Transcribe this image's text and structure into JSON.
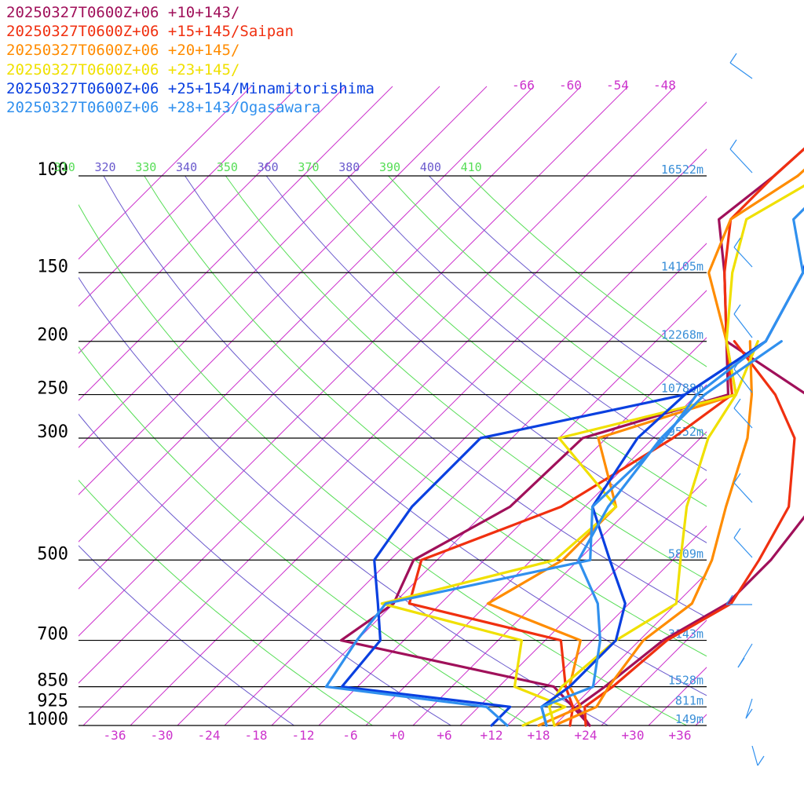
{
  "chart_data": {
    "type": "line",
    "legend_position": "top-left",
    "grid": true,
    "x_axis": {
      "unit": "°C (skewed)",
      "range": [
        -39,
        40
      ],
      "tick_labels": [
        "-36",
        "-30",
        "-24",
        "-18",
        "-12",
        "-6",
        "+0",
        "+6",
        "+12",
        "+18",
        "+24",
        "+30",
        "+36"
      ],
      "tick_values": [
        -36,
        -30,
        -24,
        -18,
        -12,
        -6,
        0,
        6,
        12,
        18,
        24,
        30,
        36
      ]
    },
    "y_axis": {
      "unit": "hPa",
      "scale": "log",
      "range": [
        1000,
        100
      ],
      "levels": [
        {
          "p": 100,
          "label": "100",
          "height": "16522m"
        },
        {
          "p": 150,
          "label": "150",
          "height": "14105m"
        },
        {
          "p": 200,
          "label": "200",
          "height": "12268m"
        },
        {
          "p": 250,
          "label": "250",
          "height": "10788m"
        },
        {
          "p": 300,
          "label": "300",
          "height": "9552m"
        },
        {
          "p": 500,
          "label": "500",
          "height": "5809m"
        },
        {
          "p": 700,
          "label": "700",
          "height": "3143m"
        },
        {
          "p": 850,
          "label": "850",
          "height": "1528m"
        },
        {
          "p": 925,
          "label": "925",
          "height": "811m"
        },
        {
          "p": 1000,
          "label": "1000",
          "height": "149m"
        }
      ]
    },
    "top_isotherm_labels": [
      "-66",
      "-60",
      "-54",
      "-48"
    ],
    "theta_labels": [
      {
        "text": "310",
        "color": "#55dd55"
      },
      {
        "text": "320",
        "color": "#6a5acd"
      },
      {
        "text": "330",
        "color": "#55dd55"
      },
      {
        "text": "340",
        "color": "#6a5acd"
      },
      {
        "text": "350",
        "color": "#55dd55"
      },
      {
        "text": "360",
        "color": "#6a5acd"
      },
      {
        "text": "370",
        "color": "#55dd55"
      },
      {
        "text": "380",
        "color": "#6a5acd"
      },
      {
        "text": "390",
        "color": "#55dd55"
      },
      {
        "text": "400",
        "color": "#6a5acd"
      },
      {
        "text": "410",
        "color": "#55dd55"
      }
    ],
    "series": [
      {
        "name": "20250327T0600Z+06 +10+143/",
        "color": "#a0105a",
        "temperature": [
          [
            1000,
            24.5
          ],
          [
            925,
            20
          ],
          [
            850,
            15
          ],
          [
            700,
            -18
          ],
          [
            600,
            -16
          ],
          [
            500,
            -19
          ],
          [
            400,
            -13.5
          ],
          [
            300,
            -13
          ],
          [
            250,
            0
          ],
          [
            200,
            -7
          ],
          [
            150,
            -16
          ],
          [
            120,
            -23.5
          ],
          [
            100,
            -22
          ]
        ],
        "dewpoint": [
          [
            1000,
            24.5
          ],
          [
            925,
            20.5
          ],
          [
            850,
            21.5
          ],
          [
            700,
            23
          ],
          [
            600,
            26.5
          ],
          [
            500,
            26.5
          ],
          [
            400,
            25
          ],
          [
            300,
            18
          ],
          [
            250,
            10
          ],
          [
            200,
            -7
          ]
        ]
      },
      {
        "name": "20250327T0600Z+06 +15+145/Saipan",
        "color": "#f03010",
        "temperature": [
          [
            1000,
            22
          ],
          [
            925,
            20
          ],
          [
            850,
            16.5
          ],
          [
            700,
            10
          ],
          [
            600,
            -14
          ],
          [
            500,
            -18
          ],
          [
            400,
            -7
          ],
          [
            300,
            -1.5
          ],
          [
            250,
            0.5
          ],
          [
            200,
            -7
          ],
          [
            150,
            -16
          ],
          [
            120,
            -22
          ],
          [
            100,
            -22
          ]
        ],
        "dewpoint": [
          [
            1000,
            24
          ],
          [
            925,
            21.5
          ],
          [
            850,
            22.5
          ],
          [
            700,
            23.5
          ],
          [
            600,
            27
          ],
          [
            500,
            25
          ],
          [
            400,
            22
          ],
          [
            300,
            14
          ],
          [
            250,
            6
          ],
          [
            200,
            -6
          ]
        ]
      },
      {
        "name": "20250327T0600Z+06 +20+145/",
        "color": "#ff8c00",
        "temperature": [
          [
            1000,
            18
          ],
          [
            925,
            21
          ],
          [
            850,
            17
          ],
          [
            700,
            12.5
          ],
          [
            600,
            -4
          ],
          [
            500,
            0
          ],
          [
            400,
            0
          ],
          [
            300,
            -11
          ],
          [
            250,
            1
          ],
          [
            200,
            -7
          ],
          [
            150,
            -18
          ],
          [
            120,
            -22
          ],
          [
            100,
            -19
          ]
        ],
        "dewpoint": [
          [
            1000,
            20
          ],
          [
            925,
            23
          ],
          [
            850,
            22
          ],
          [
            700,
            20.5
          ],
          [
            600,
            22
          ],
          [
            500,
            19
          ],
          [
            400,
            14
          ],
          [
            300,
            8
          ],
          [
            250,
            3
          ],
          [
            200,
            -4
          ]
        ]
      },
      {
        "name": "20250327T0600Z+06 +23+145/",
        "color": "#f0e000",
        "temperature": [
          [
            1000,
            16
          ],
          [
            925,
            19
          ],
          [
            850,
            10
          ],
          [
            700,
            5
          ],
          [
            600,
            -17.5
          ],
          [
            500,
            -1
          ],
          [
            400,
            0
          ],
          [
            300,
            -16
          ],
          [
            250,
            1
          ],
          [
            200,
            -7
          ],
          [
            150,
            -15
          ],
          [
            120,
            -20
          ],
          [
            100,
            -16
          ]
        ],
        "dewpoint": [
          [
            1000,
            20
          ],
          [
            925,
            17
          ],
          [
            850,
            16
          ],
          [
            700,
            17
          ],
          [
            600,
            20
          ],
          [
            500,
            15
          ],
          [
            400,
            9
          ],
          [
            300,
            3
          ],
          [
            250,
            1
          ],
          [
            200,
            -3
          ]
        ]
      },
      {
        "name": "20250327T0600Z+06 +25+154/Minamitorishima",
        "color": "#0a40e0",
        "temperature": [
          [
            1000,
            12
          ],
          [
            925,
            12
          ],
          [
            850,
            -12
          ],
          [
            700,
            -13
          ],
          [
            600,
            -18
          ],
          [
            500,
            -24
          ],
          [
            400,
            -26
          ],
          [
            300,
            -26
          ],
          [
            250,
            -5.5
          ],
          [
            200,
            -2
          ],
          [
            150,
            -6
          ],
          [
            120,
            -11
          ],
          [
            100,
            -10
          ]
        ],
        "dewpoint": [
          [
            1000,
            19
          ],
          [
            925,
            16
          ],
          [
            850,
            17
          ],
          [
            700,
            17
          ],
          [
            600,
            13.5
          ],
          [
            500,
            6
          ],
          [
            400,
            -3
          ],
          [
            300,
            -6
          ],
          [
            250,
            -5.5
          ],
          [
            200,
            -2
          ]
        ]
      },
      {
        "name": "20250327T0600Z+06 +28+143/Ogasawara",
        "color": "#3090ee",
        "temperature": [
          [
            1000,
            14
          ],
          [
            925,
            9
          ],
          [
            850,
            -14
          ],
          [
            700,
            -16
          ],
          [
            600,
            -17
          ],
          [
            500,
            3.5
          ],
          [
            400,
            -3
          ],
          [
            300,
            -2.5
          ],
          [
            250,
            -4
          ],
          [
            200,
            -2
          ],
          [
            150,
            -6
          ],
          [
            120,
            -14
          ],
          [
            100,
            -14
          ]
        ],
        "dewpoint": [
          [
            1000,
            19
          ],
          [
            925,
            16
          ],
          [
            850,
            20
          ],
          [
            700,
            15
          ],
          [
            600,
            10
          ],
          [
            500,
            2
          ],
          [
            400,
            -1
          ],
          [
            300,
            -3
          ],
          [
            250,
            -3
          ],
          [
            200,
            0
          ]
        ]
      }
    ],
    "wind_barb_color": "#3090ee"
  }
}
